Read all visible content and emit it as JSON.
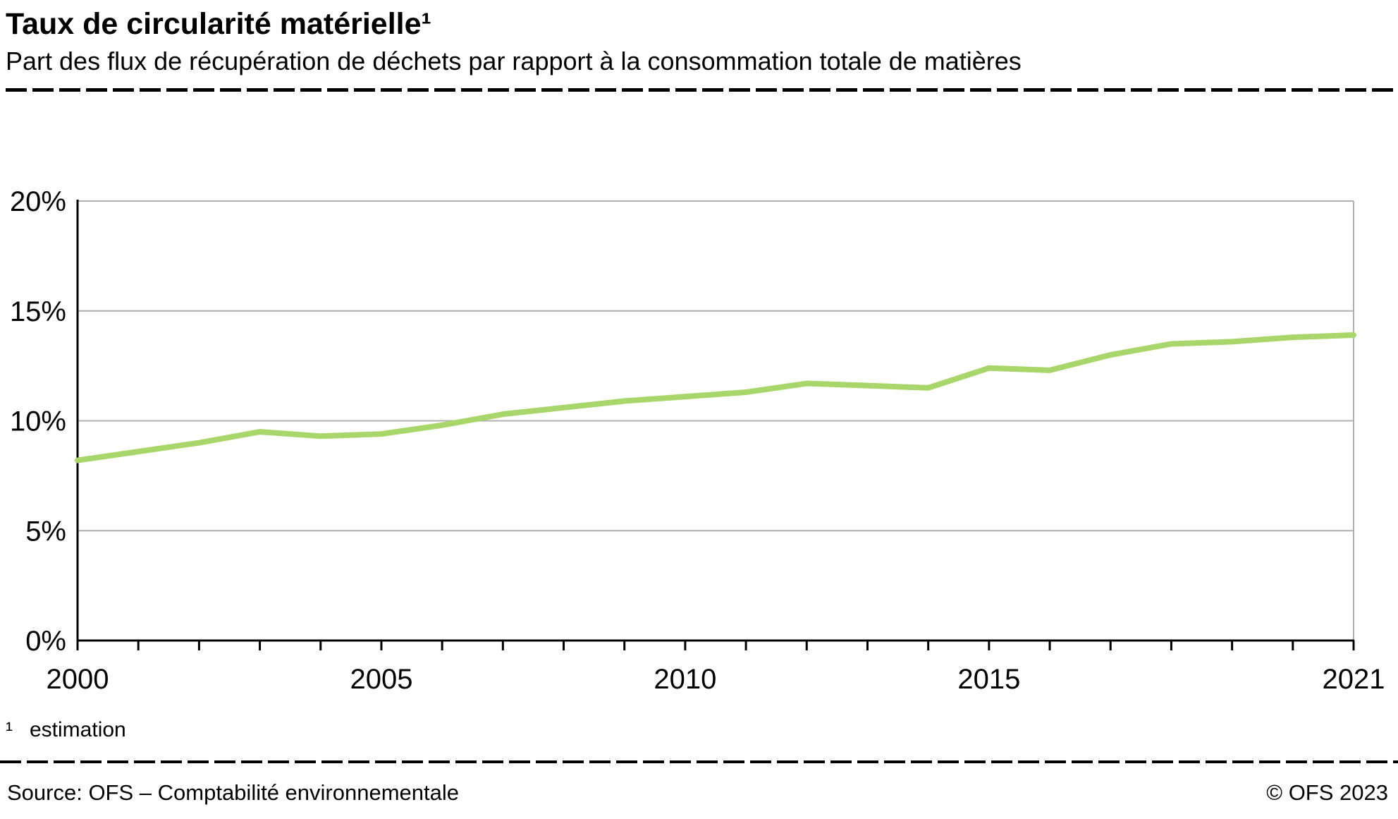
{
  "header": {
    "title": "Taux de circularité matérielle¹",
    "subtitle": "Part des flux de récupération de déchets par rapport à la consommation totale de matières"
  },
  "footnote": {
    "marker": "¹",
    "text": "estimation"
  },
  "footer": {
    "source": "Source: OFS – Comptabilité environnementale",
    "copyright": "© OFS 2023"
  },
  "chart_data": {
    "type": "line",
    "title": "Taux de circularité matérielle (estimation)",
    "x": [
      2000,
      2001,
      2002,
      2003,
      2004,
      2005,
      2006,
      2007,
      2008,
      2009,
      2010,
      2011,
      2012,
      2013,
      2014,
      2015,
      2016,
      2017,
      2018,
      2019,
      2020,
      2021
    ],
    "series": [
      {
        "name": "Taux de circularité matérielle",
        "values": [
          8.2,
          8.6,
          9.0,
          9.5,
          9.3,
          9.4,
          9.8,
          10.3,
          10.6,
          10.9,
          11.1,
          11.3,
          11.7,
          11.6,
          11.5,
          12.4,
          12.3,
          13.0,
          13.5,
          13.6,
          13.8,
          13.9
        ]
      }
    ],
    "xlabel": "",
    "ylabel": "",
    "ylim": [
      0,
      20
    ],
    "yticks": [
      0,
      5,
      10,
      15,
      20
    ],
    "ytick_labels": [
      "0%",
      "5%",
      "10%",
      "15%",
      "20%"
    ],
    "xticks_labeled": [
      2000,
      2005,
      2010,
      2015,
      2021
    ],
    "xtick_labels": [
      "2000",
      "2005",
      "2010",
      "2015",
      "2021"
    ],
    "grid": true,
    "legend_position": "none",
    "line_color": "#a9d66a",
    "grid_color": "#b0b0b0",
    "axis_color": "#000000"
  }
}
